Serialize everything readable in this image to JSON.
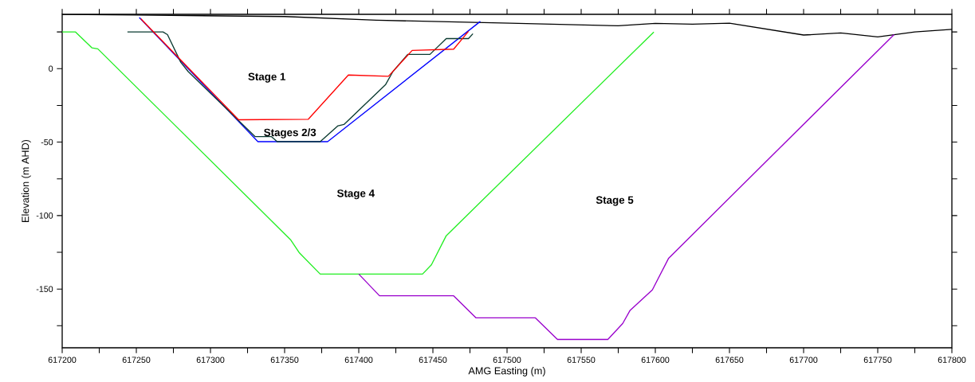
{
  "chart_data": {
    "type": "line",
    "xlabel": "AMG Easting (m)",
    "ylabel": "Elevation (m AHD)",
    "xlim": [
      617200,
      617800
    ],
    "ylim": [
      -190,
      37
    ],
    "xticks": [
      617200,
      {
        "value": 617225,
        "label": null
      },
      617250,
      {
        "value": 617275,
        "label": null
      },
      617300,
      {
        "value": 617325,
        "label": null
      },
      617350,
      {
        "value": 617375,
        "label": null
      },
      617400,
      {
        "value": 617425,
        "label": null
      },
      617450,
      {
        "value": 617475,
        "label": null
      },
      617500,
      {
        "value": 617525,
        "label": null
      },
      617550,
      {
        "value": 617575,
        "label": null
      },
      617600,
      {
        "value": 617625,
        "label": null
      },
      617650,
      {
        "value": 617675,
        "label": null
      },
      617700,
      {
        "value": 617725,
        "label": null
      },
      617750,
      {
        "value": 617775,
        "label": null
      },
      617800
    ],
    "yticks": [
      {
        "value": 25,
        "label": null
      },
      0,
      {
        "value": -25,
        "label": null
      },
      -50,
      {
        "value": -75,
        "label": null
      },
      -100,
      {
        "value": -125,
        "label": null
      },
      -150,
      {
        "value": -175,
        "label": null
      }
    ],
    "marker": "none",
    "line_style": "solid",
    "series": [
      {
        "color": "#000000",
        "x": [
          617200,
          617250,
          617350,
          617412,
          617502,
          617575,
          617600,
          617625,
          617650,
          617700,
          617725,
          617750,
          617775,
          617800
        ],
        "values": [
          36.9,
          36.5,
          35.5,
          33,
          31,
          29.2,
          30.8,
          30.3,
          31,
          22.9,
          24.3,
          21.6,
          25,
          26.8
        ]
      },
      {
        "color": "#22ee22",
        "x": [
          617200,
          617209,
          617220,
          617224,
          617354,
          617360,
          617374,
          617443,
          617449,
          617459,
          617599
        ],
        "values": [
          25,
          25,
          14.2,
          13.5,
          -116.4,
          -125.4,
          -139.8,
          -139.8,
          -133.5,
          -113.7,
          25
        ]
      },
      {
        "color": "#9900cc",
        "x": [
          617400,
          617414,
          617464,
          617479,
          617519,
          617534,
          617568,
          617578,
          617583,
          617598,
          617609,
          617761
        ],
        "values": [
          -139.8,
          -154.6,
          -154.6,
          -169.6,
          -169.6,
          -184.3,
          -184.3,
          -173.5,
          -164.5,
          -150.6,
          -129,
          23.2
        ]
      },
      {
        "color": "#0000ff",
        "x": [
          617252,
          617332,
          617379,
          617482
        ],
        "values": [
          34.8,
          -49.7,
          -49.7,
          32.2
        ]
      },
      {
        "color": "#0a3a30",
        "x": [
          617244,
          617268,
          617271,
          617280,
          617285,
          617330,
          617341,
          617345,
          617374,
          617386,
          617390,
          617418,
          617423,
          617433,
          617448,
          617459,
          617474,
          617477
        ],
        "values": [
          25,
          25,
          23.2,
          4.3,
          -2,
          -46.2,
          -46.2,
          -49.7,
          -49.7,
          -38.9,
          -38,
          -11,
          -2,
          9.7,
          9.7,
          20.5,
          20.5,
          23.8
        ]
      },
      {
        "color": "#ff0000",
        "x": [
          617253,
          617319,
          617366,
          617393,
          617420,
          617436,
          617464,
          617474
        ],
        "values": [
          34,
          -34.8,
          -34.4,
          -4.3,
          -5.2,
          12.4,
          13.3,
          25.4
        ]
      }
    ],
    "annotations": [
      "Stage 1",
      "Stages 2/3",
      "Stage 4",
      "Stage 5"
    ]
  }
}
